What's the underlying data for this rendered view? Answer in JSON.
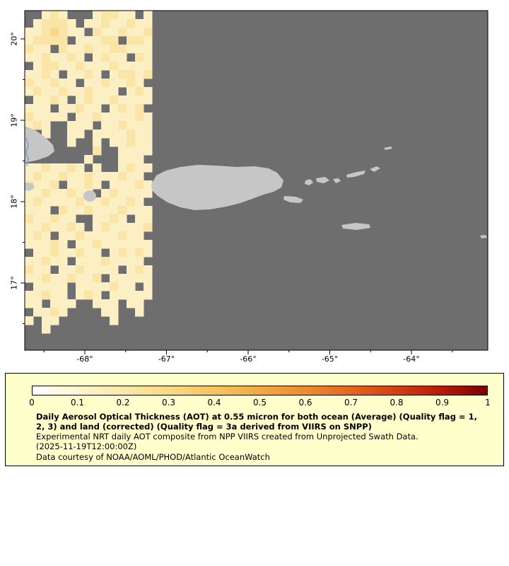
{
  "map": {
    "background_color": "#6e6e6e",
    "island_color": "#c6c6c6",
    "axes": {
      "lat_labels": [
        "20°",
        "19°",
        "18°",
        "17°"
      ],
      "lon_labels": [
        "-68°",
        "-67°",
        "-66°",
        "-65°",
        "-64°"
      ]
    },
    "grid": {
      "palette": {
        "a": "#fdf6dc",
        "b": "#fcefc3",
        "c": "#fae5a7",
        "d": "#f7d88d",
        "e": "#f3c976"
      },
      "rows": [
        "..bcb...bccbb.b",
        ".bcccb.bbcbbcbb",
        "bbcdcbb.cbbcbbc",
        "bcccc.bbbcc.ccb",
        "cbb.cbbcbbccbbb",
        "bbcbbcb.bcbb.cb",
        ".bccbbcbbbcbbbb",
        "bbcb.bbcb.bccbc",
        "cbbcbb.bbcbbcb.",
        "bcbbcbbcbbb.bcb",
        ".bbcb.bcbbcbbbb",
        "bbb.bbcbb.bcbc.",
        "cbbbb.bbcbbbbcb",
        "bcb..bbb.bbcbbb",
        "..b..bb.bbbbcbb",
        ".....b..b.bbcbb",
        "........c..bbbb",
        ".......b...bbb.",
        "bbcbbcb.b..bcbb",
        "bcbbcbbcbbbcbb.",
        "cbbc.bbcb.bbbcb",
        "bbcbbcbb.bcbbbb",
        "bcbbbbcbbcbbcb.",
        "bbb.cbbcbbbcbbb",
        "cbbcbb..bbcb.bb",
        "bbcbbcb.bcbbbbc",
        "bcb.bbcbbbbcbb.",
        "bbbcb.bbcbbbbbb",
        ".bbcbbcbb.bcbcb",
        "bbcbb.bbbcbbbb.",
        "cbb.bbcbbbb.bcb",
        "bbcbbcbbc.bbbbb",
        ".bbbb.bbbbcbb.b",
        "bbcbb.bcb.bbbbb",
        "bb.bbb..bbb.bb.",
        ".bbcb....bb..b.",
        "b.bb......b....",
        "..b............"
      ]
    }
  },
  "legend": {
    "background_color": "#ffffcc",
    "colorbar": {
      "stops": [
        "#ffffff",
        "#fdf5d0",
        "#fbe9a8",
        "#f9da82",
        "#f6c55e",
        "#f2a943",
        "#ec8b2f",
        "#e4661f",
        "#d43f12",
        "#b81a08",
        "#7a0000"
      ],
      "tick_labels": [
        "0",
        "0.1",
        "0.2",
        "0.3",
        "0.4",
        "0.5",
        "0.6",
        "0.7",
        "0.8",
        "0.9",
        "1"
      ]
    },
    "caption_bold": "Daily Aerosol Optical Thickness (AOT) at 0.55 micron for both ocean (Average) (Quality flag = 1, 2, 3) and land (corrected) (Quality flag = 3a derived from VIIRS on SNPP)",
    "line2": "Experimental NRT daily AOT composite from NPP VIIRS created from Unprojected Swath Data.",
    "line3": "(2025-11-19T12:00:00Z)",
    "line4": "Data courtesy of NOAA/AOML/PHOD/Atlantic OceanWatch"
  }
}
